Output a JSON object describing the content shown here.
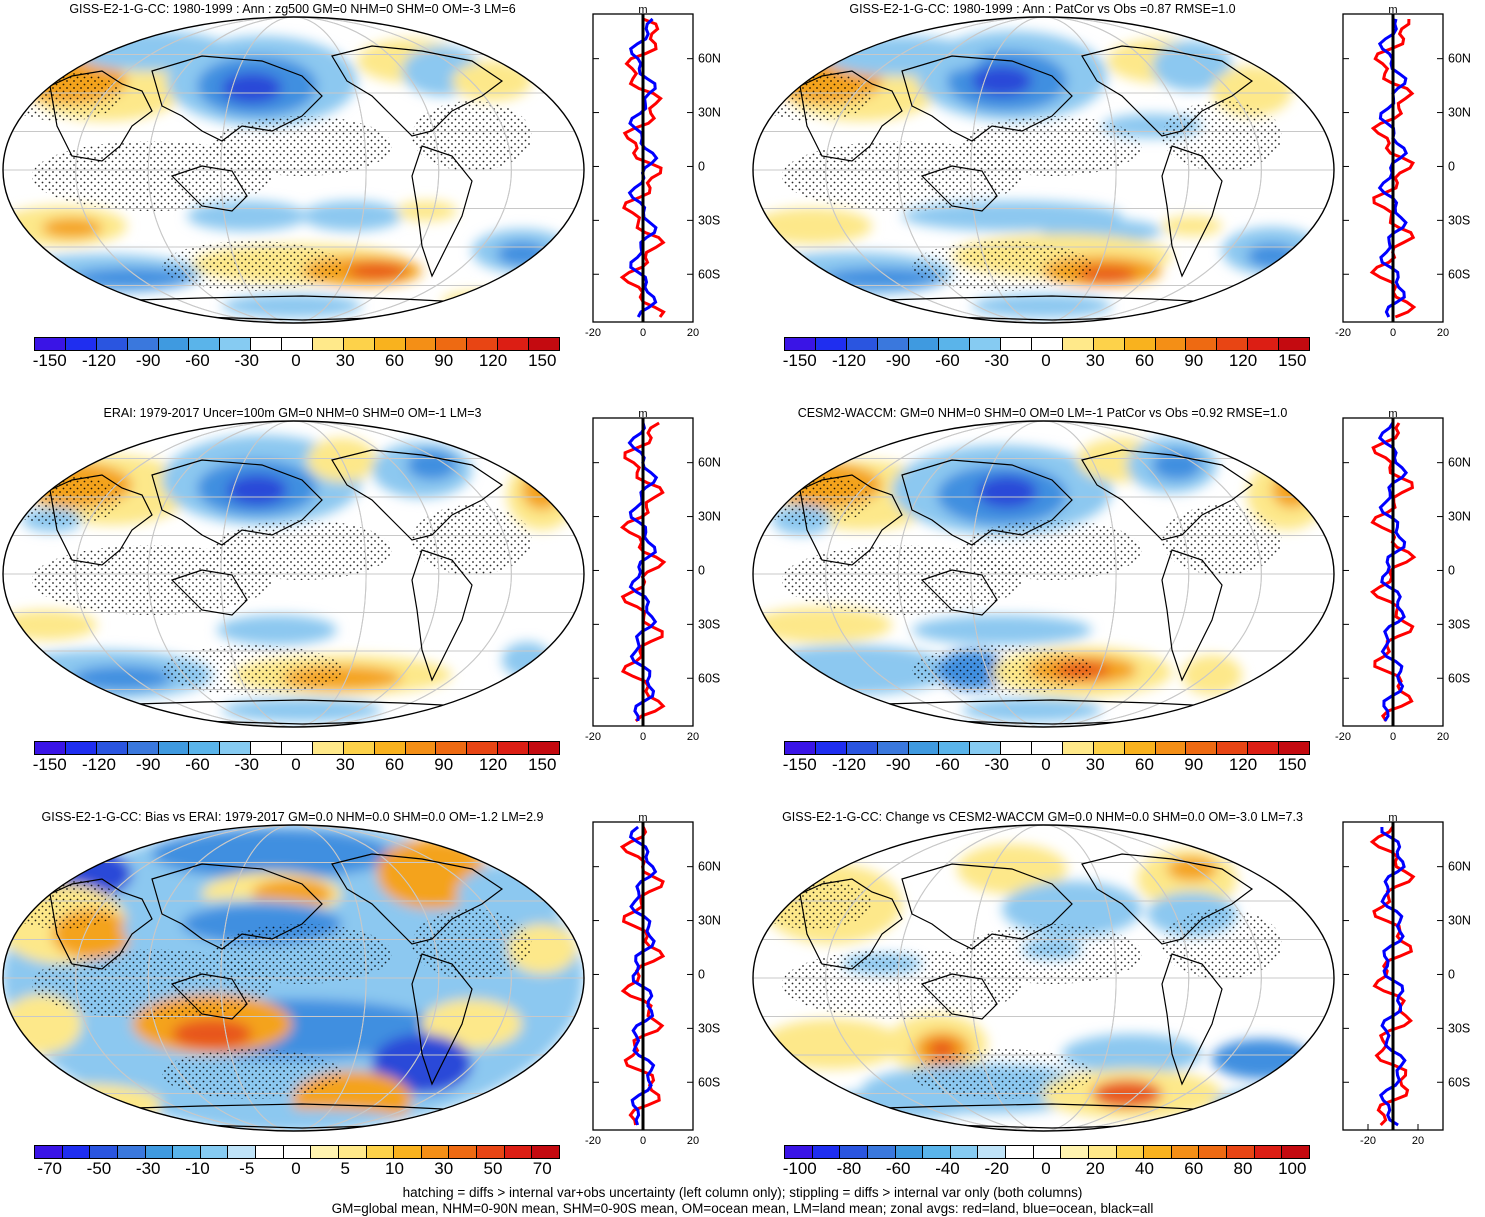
{
  "colors": {
    "blue_strong": "#2c49d8",
    "blue_mid": "#3f8fe0",
    "blue_light": "#8cc8f0",
    "orange_strong": "#e8561a",
    "orange_mid": "#f4a31c",
    "yellow_light": "#fde88a",
    "zonal_land": "#ff0000",
    "zonal_ocean": "#0000ff",
    "zonal_all": "#000000",
    "cbar_a": [
      "#3a14e6",
      "#1f2ef0",
      "#2a55e0",
      "#3a78dd",
      "#3f9ae0",
      "#5ab4ea",
      "#86cbf2",
      "#ffffff",
      "#ffffff",
      "#ffe98a",
      "#fdd24a",
      "#f9b21e",
      "#f48f16",
      "#ee6a12",
      "#e84514",
      "#dc1e14",
      "#c40a10"
    ],
    "cbar_b": [
      "#3a14e6",
      "#1f2ef0",
      "#2a55e0",
      "#3a78dd",
      "#3f9ae0",
      "#5ab4ea",
      "#86cbf2",
      "#bfe3f8",
      "#ffffff",
      "#ffffff",
      "#fff3b0",
      "#ffe98a",
      "#fdd24a",
      "#f9b21e",
      "#f48f16",
      "#ee6a12",
      "#e84514",
      "#dc1e14",
      "#c40a10"
    ]
  },
  "panels": [
    {
      "title": "GISS-E2-1-G-CC: 1980-1999 : Ann : zg500 GM=0 NHM=0 SHM=0 OM=-3 LM=6",
      "colorbar_labels": [
        "-150",
        "-120",
        "-90",
        "-60",
        "-30",
        "0",
        "30",
        "60",
        "90",
        "120",
        "150"
      ],
      "zonal_xticks": [
        "-20",
        "0",
        "20"
      ],
      "zonal_units": "m"
    },
    {
      "title": "GISS-E2-1-G-CC: 1980-1999 : Ann : PatCor vs Obs =0.87 RMSE=1.0",
      "colorbar_labels": [
        "-150",
        "-120",
        "-90",
        "-60",
        "-30",
        "0",
        "30",
        "60",
        "90",
        "120",
        "150"
      ],
      "zonal_xticks": [
        "-20",
        "0",
        "20"
      ],
      "zonal_units": "m"
    },
    {
      "title": "ERAI: 1979-2017 Uncer=100m GM=0 NHM=0 SHM=0 OM=-1 LM=3",
      "colorbar_labels": [
        "-150",
        "-120",
        "-90",
        "-60",
        "-30",
        "0",
        "30",
        "60",
        "90",
        "120",
        "150"
      ],
      "zonal_xticks": [
        "-20",
        "0",
        "20"
      ],
      "zonal_units": "m"
    },
    {
      "title": "CESM2-WACCM: GM=0 NHM=0 SHM=0 OM=0 LM=-1 PatCor vs Obs =0.92 RMSE=1.0",
      "colorbar_labels": [
        "-150",
        "-120",
        "-90",
        "-60",
        "-30",
        "0",
        "30",
        "60",
        "90",
        "120",
        "150"
      ],
      "zonal_xticks": [
        "-20",
        "0",
        "20"
      ],
      "zonal_units": "m"
    },
    {
      "title": "GISS-E2-1-G-CC: Bias vs ERAI: 1979-2017 GM=0.0 NHM=0.0 SHM=0.0 OM=-1.2 LM=2.9",
      "colorbar_labels": [
        "-70",
        "-50",
        "-30",
        "-10",
        "-5",
        "0",
        "5",
        "10",
        "30",
        "50",
        "70"
      ],
      "zonal_xticks": [
        "-20",
        "0",
        "20"
      ],
      "zonal_units": "m"
    },
    {
      "title": "GISS-E2-1-G-CC: Change vs CESM2-WACCM GM=0.0 NHM=0.0 SHM=0.0 OM=-3.0 LM=7.3",
      "colorbar_labels": [
        "-100",
        "-80",
        "-60",
        "-40",
        "-20",
        "0",
        "20",
        "40",
        "60",
        "80",
        "100"
      ],
      "zonal_xticks": [
        "-20",
        "20"
      ],
      "zonal_units": "m"
    }
  ],
  "lat_labels": [
    "60N",
    "30N",
    "0",
    "30S",
    "60S"
  ],
  "footer": {
    "line1": "hatching = diffs > internal var+obs uncertainty (left column only); stippling = diffs > internal var only (both columns)",
    "line2": "GM=global mean, NHM=0-90N mean, SHM=0-90S mean, OM=ocean mean, LM=land mean; zonal avgs: red=land, blue=ocean, black=all"
  }
}
